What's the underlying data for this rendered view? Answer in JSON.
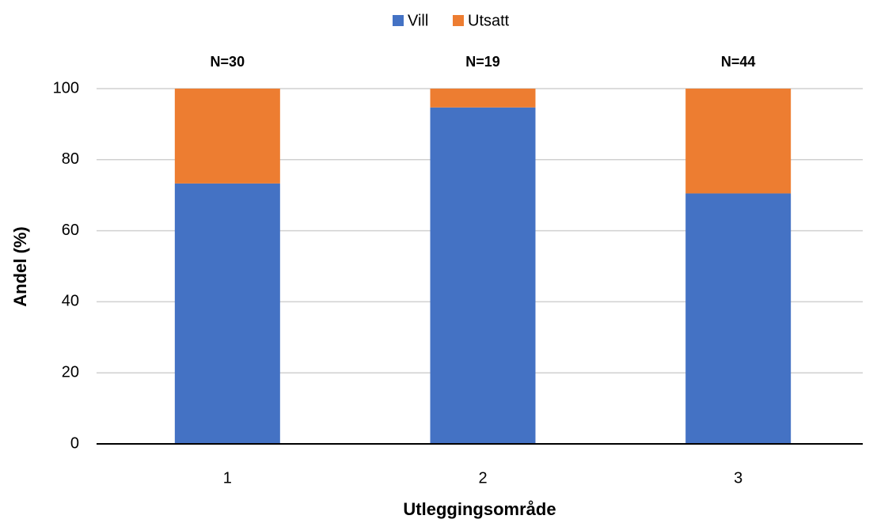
{
  "chart_data": {
    "type": "stacked_bar",
    "categories": [
      "1",
      "2",
      "3"
    ],
    "series": [
      {
        "name": "Vill",
        "color": "#4472c4",
        "values": [
          73.3,
          94.7,
          70.5
        ]
      },
      {
        "name": "Utsatt",
        "color": "#ed7d31",
        "values": [
          26.7,
          5.3,
          29.5
        ]
      }
    ],
    "annotations": [
      "N=30",
      "N=19",
      "N=44"
    ],
    "x_label": "Utleggingsområde",
    "y_label": "Andel (%)",
    "ylim": [
      0,
      100
    ],
    "yticks": [
      0,
      20,
      40,
      60,
      80,
      100
    ],
    "grid": true,
    "legend": "top"
  }
}
